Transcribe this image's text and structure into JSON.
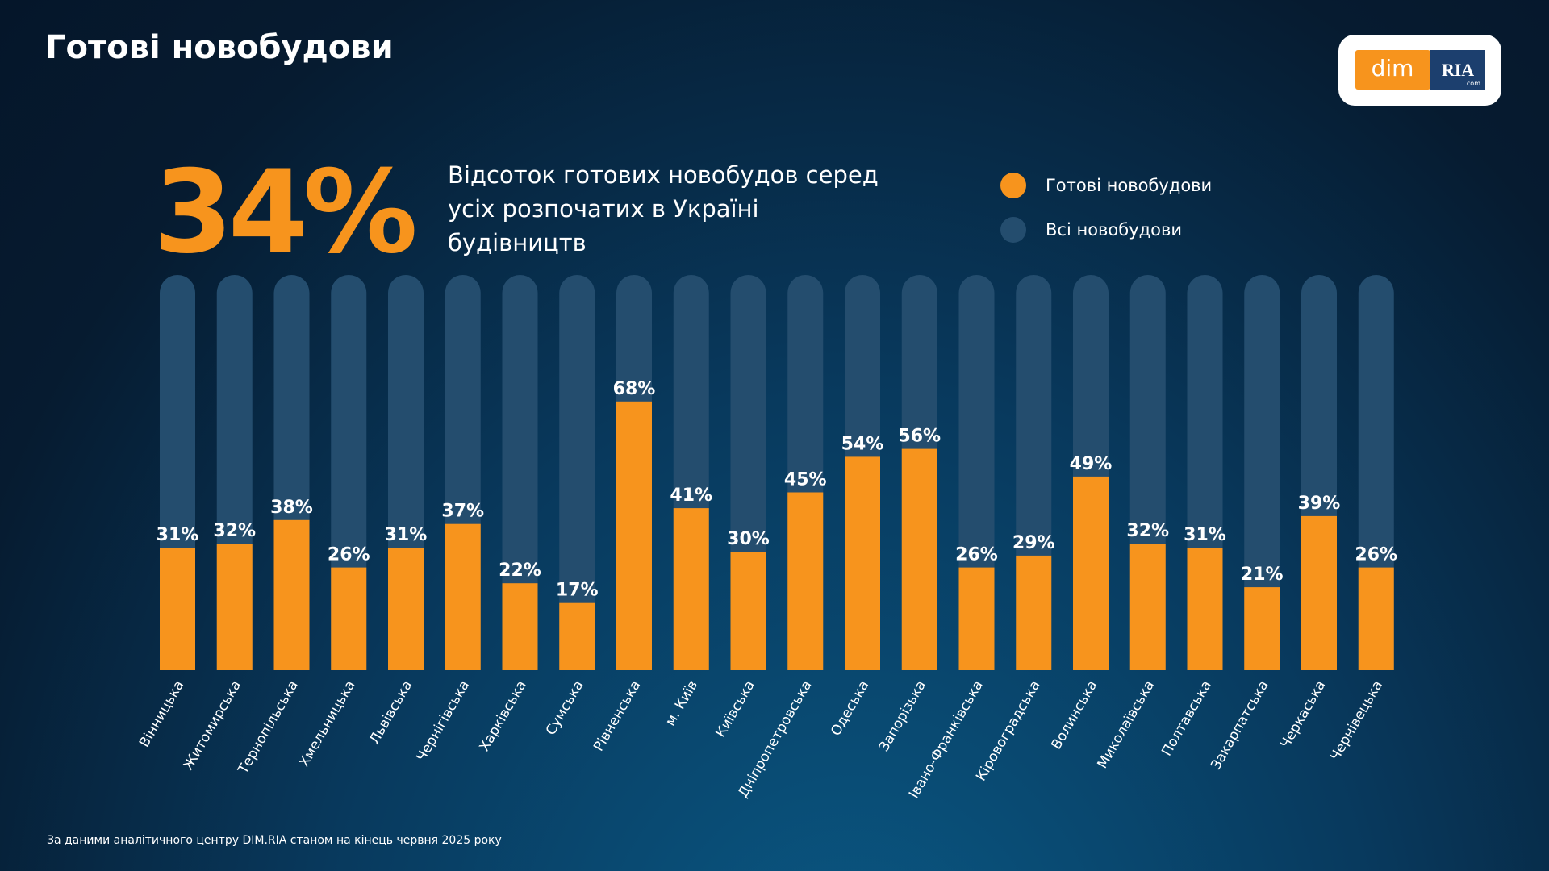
{
  "title": "Готові новобудови",
  "logo": {
    "left": "dim",
    "right": "RIA",
    "suffix": ".com"
  },
  "headline": "34%",
  "subtitle": "Відсоток готових новобудов серед усіх розпочатих в Україні будівництв",
  "footnote": "За даними аналітичного центру DIM.RIA станом на кінець червня 2025 року",
  "chart_data": {
    "type": "bar",
    "categories": [
      "Вінницька",
      "Житомирська",
      "Тернопільська",
      "Хмельницька",
      "Львівська",
      "Чернігівська",
      "Харківська",
      "Сумська",
      "Рівненська",
      "м. Київ",
      "Київська",
      "Дніпропетровська",
      "Одеська",
      "Запорізька",
      "Івано-Франківська",
      "Кіровоградська",
      "Волинська",
      "Миколаївська",
      "Полтавська",
      "Закарпатська",
      "Черкаська",
      "Чернівецька"
    ],
    "series": [
      {
        "name": "Готові новобудови",
        "color": "#f7941d",
        "values": [
          31,
          32,
          38,
          26,
          31,
          37,
          22,
          17,
          68,
          41,
          30,
          45,
          54,
          56,
          26,
          29,
          49,
          32,
          31,
          21,
          39,
          26
        ],
        "value_labels": [
          "31%",
          "32%",
          "38%",
          "26%",
          "31%",
          "37%",
          "22%",
          "17%",
          "68%",
          "41%",
          "30%",
          "45%",
          "54%",
          "56%",
          "26%",
          "29%",
          "49%",
          "32%",
          "31%",
          "21%",
          "39%",
          "26%"
        ]
      },
      {
        "name": "Всі новобудови",
        "color": "#244d6e",
        "values": [
          100,
          100,
          100,
          100,
          100,
          100,
          100,
          100,
          100,
          100,
          100,
          100,
          100,
          100,
          100,
          100,
          100,
          100,
          100,
          100,
          100,
          100
        ]
      }
    ],
    "ylim": [
      0,
      100
    ]
  }
}
